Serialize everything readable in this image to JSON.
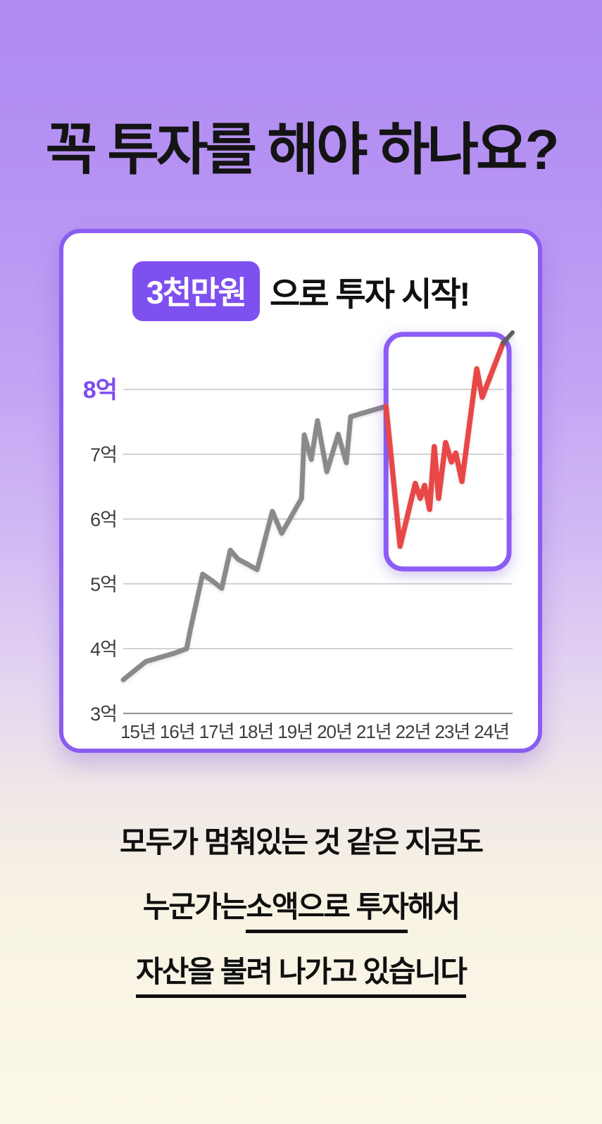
{
  "headline": "꼭 투자를 해야 하나요?",
  "card": {
    "badge": "3천만원",
    "title_rest": "으로 투자 시작!"
  },
  "colors": {
    "background_top": "#b08af2",
    "background_bottom": "#fbf7e9",
    "card_border": "#8a5cf2",
    "badge_purple": "#7e50f0",
    "highlight_box_purple": "#8b5cf6",
    "line_gray": "#8a8a8a",
    "line_red": "#e94747",
    "line_tip_gray": "#5f5f5f",
    "grid_gray": "#c4c4c4",
    "axis_gray": "#9a9a9a",
    "y_label_highlight": "#7b4cf0",
    "tick_text": "#3d3d3d",
    "text_black": "#101010"
  },
  "chart_data": {
    "type": "line",
    "title": "3천만원 으로 투자 시작!",
    "unit": "억",
    "x_ticks": [
      "15년",
      "16년",
      "17년",
      "18년",
      "19년",
      "20년",
      "21년",
      "22년",
      "23년",
      "24년"
    ],
    "y_ticks": [
      {
        "label": "8억",
        "value": 8,
        "highlight": true,
        "axis": false
      },
      {
        "label": "7억",
        "value": 7,
        "highlight": false,
        "axis": false
      },
      {
        "label": "6억",
        "value": 6,
        "highlight": false,
        "axis": false
      },
      {
        "label": "5억",
        "value": 5,
        "highlight": false,
        "axis": false
      },
      {
        "label": "4억",
        "value": 4,
        "highlight": false,
        "axis": false
      },
      {
        "label": "3억",
        "value": 3,
        "highlight": false,
        "axis": true
      }
    ],
    "ylim": [
      3,
      9.1
    ],
    "grid": true,
    "series": [
      {
        "name": "asset-growth-2015-2021-gray",
        "color": "#8a8a8a",
        "width": 7,
        "points": [
          [
            0,
            3.52
          ],
          [
            5.8,
            3.8
          ],
          [
            13.2,
            3.93
          ],
          [
            16.3,
            4.0
          ],
          [
            17.2,
            4.28
          ],
          [
            20.4,
            5.15
          ],
          [
            23.0,
            5.04
          ],
          [
            25.3,
            4.93
          ],
          [
            27.5,
            5.52
          ],
          [
            29.5,
            5.38
          ],
          [
            32.0,
            5.3
          ],
          [
            34.4,
            5.22
          ],
          [
            38.3,
            6.12
          ],
          [
            40.7,
            5.78
          ],
          [
            45.8,
            6.32
          ],
          [
            46.5,
            7.3
          ],
          [
            48.3,
            6.92
          ],
          [
            49.9,
            7.52
          ],
          [
            52.3,
            6.73
          ],
          [
            55.2,
            7.31
          ],
          [
            57.3,
            6.87
          ],
          [
            58.4,
            7.58
          ],
          [
            67.5,
            7.74
          ]
        ]
      },
      {
        "name": "asset-growth-2022-2024-red-highlight",
        "color": "#e94747",
        "width": 7.5,
        "points": [
          [
            67.5,
            7.74
          ],
          [
            71.1,
            5.58
          ],
          [
            75.0,
            6.55
          ],
          [
            76.3,
            6.32
          ],
          [
            77.4,
            6.52
          ],
          [
            78.7,
            6.15
          ],
          [
            79.9,
            7.12
          ],
          [
            81.0,
            6.32
          ],
          [
            82.8,
            7.18
          ],
          [
            84.3,
            6.88
          ],
          [
            85.4,
            7.02
          ],
          [
            87.0,
            6.58
          ],
          [
            90.8,
            8.32
          ],
          [
            92.2,
            7.88
          ],
          [
            97.6,
            8.72
          ]
        ]
      },
      {
        "name": "line-end-tip-gray",
        "color": "#5f5f5f",
        "width": 6,
        "points": [
          [
            97.6,
            8.72
          ],
          [
            100,
            8.88
          ]
        ]
      }
    ],
    "highlight_box": {
      "x1_pct": 67.5,
      "x2_pct": 99.1,
      "top_value": 8.85,
      "bottom_value": 5.23,
      "color": "#8b5cf6",
      "corner_radius": 24,
      "stroke_width": 7,
      "covers_x_ticks": "22년~24년"
    }
  },
  "bottom_text": {
    "lines": [
      [
        {
          "text": "모두가 멈춰있는 것 같은 지금도",
          "bold": false,
          "underline": false
        }
      ],
      [
        {
          "text": "누군가는 ",
          "bold": false,
          "underline": false
        },
        {
          "text": "소액으로 투자",
          "bold": true,
          "underline": true
        },
        {
          "text": "해서",
          "bold": false,
          "underline": false
        }
      ],
      [
        {
          "text": "자산을 불려 나가고 있습니다",
          "bold": true,
          "underline": true
        }
      ]
    ]
  }
}
